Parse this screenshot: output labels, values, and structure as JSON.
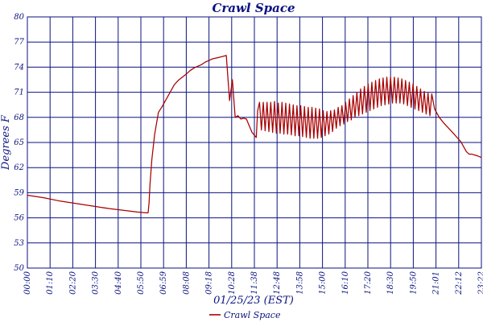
{
  "chart_data": {
    "type": "line",
    "title": "Crawl Space",
    "xlabel": "01/25/23 (EST)",
    "ylabel": "Degrees F",
    "ylim": [
      50,
      80
    ],
    "y_ticks": [
      "50",
      "53",
      "56",
      "59",
      "62",
      "65",
      "68",
      "71",
      "74",
      "77",
      "80"
    ],
    "x_ticks": [
      "00:00",
      "01:10",
      "02:20",
      "03:30",
      "04:40",
      "05:50",
      "06:59",
      "08:08",
      "09:18",
      "10:28",
      "11:38",
      "12:48",
      "13:58",
      "15:00",
      "16:10",
      "17:20",
      "18:30",
      "19:50",
      "21:01",
      "22:12",
      "23:22"
    ],
    "grid": true,
    "legend_position": "bottom-center",
    "series": [
      {
        "name": "Crawl Space",
        "color": "#a80000",
        "points": [
          [
            0,
            58.7
          ],
          [
            35,
            58.4
          ],
          [
            70,
            58.0
          ],
          [
            105,
            57.7
          ],
          [
            140,
            57.4
          ],
          [
            175,
            57.1
          ],
          [
            205,
            56.9
          ],
          [
            235,
            56.7
          ],
          [
            254,
            56.6
          ],
          [
            258,
            56.6
          ],
          [
            260,
            57.8
          ],
          [
            262,
            60.0
          ],
          [
            266,
            63.0
          ],
          [
            272,
            66.0
          ],
          [
            280,
            68.6
          ],
          [
            288,
            69.3
          ],
          [
            297,
            70.2
          ],
          [
            305,
            71.0
          ],
          [
            314,
            71.9
          ],
          [
            322,
            72.4
          ],
          [
            331,
            72.8
          ],
          [
            340,
            73.2
          ],
          [
            348,
            73.6
          ],
          [
            356,
            73.9
          ],
          [
            364,
            74.1
          ],
          [
            372,
            74.3
          ],
          [
            380,
            74.6
          ],
          [
            388,
            74.8
          ],
          [
            396,
            75.0
          ],
          [
            404,
            75.1
          ],
          [
            412,
            75.2
          ],
          [
            419,
            75.3
          ],
          [
            425,
            75.4
          ],
          [
            432,
            70.0
          ],
          [
            438,
            72.5
          ],
          [
            444,
            68.0
          ],
          [
            450,
            68.2
          ],
          [
            456,
            67.8
          ],
          [
            462,
            67.9
          ],
          [
            468,
            67.8
          ],
          [
            474,
            67.0
          ],
          [
            480,
            66.2
          ],
          [
            486,
            65.8
          ],
          [
            489,
            65.6
          ],
          [
            492,
            68.8
          ],
          [
            496,
            69.8
          ],
          [
            500,
            66.5
          ],
          [
            504,
            69.8
          ],
          [
            508,
            66.4
          ],
          [
            512,
            69.8
          ],
          [
            516,
            66.3
          ],
          [
            520,
            69.8
          ],
          [
            524,
            66.2
          ],
          [
            528,
            69.9
          ],
          [
            532,
            66.1
          ],
          [
            536,
            69.7
          ],
          [
            540,
            66.1
          ],
          [
            544,
            69.8
          ],
          [
            548,
            66.0
          ],
          [
            552,
            69.7
          ],
          [
            556,
            66.0
          ],
          [
            560,
            69.6
          ],
          [
            564,
            65.9
          ],
          [
            568,
            69.5
          ],
          [
            572,
            65.8
          ],
          [
            576,
            69.4
          ],
          [
            580,
            65.8
          ],
          [
            584,
            69.4
          ],
          [
            588,
            65.7
          ],
          [
            592,
            69.3
          ],
          [
            596,
            65.6
          ],
          [
            600,
            69.2
          ],
          [
            604,
            65.5
          ],
          [
            608,
            69.2
          ],
          [
            612,
            65.5
          ],
          [
            616,
            69.1
          ],
          [
            620,
            65.5
          ],
          [
            624,
            69.0
          ],
          [
            628,
            65.6
          ],
          [
            632,
            68.8
          ],
          [
            636,
            65.8
          ],
          [
            640,
            68.7
          ],
          [
            644,
            66.0
          ],
          [
            648,
            68.8
          ],
          [
            652,
            66.3
          ],
          [
            656,
            68.9
          ],
          [
            660,
            66.7
          ],
          [
            664,
            69.2
          ],
          [
            668,
            67.0
          ],
          [
            672,
            69.4
          ],
          [
            676,
            67.2
          ],
          [
            680,
            69.8
          ],
          [
            684,
            67.5
          ],
          [
            688,
            70.2
          ],
          [
            692,
            67.7
          ],
          [
            696,
            70.6
          ],
          [
            700,
            68.0
          ],
          [
            704,
            71.0
          ],
          [
            708,
            68.2
          ],
          [
            712,
            71.4
          ],
          [
            716,
            68.4
          ],
          [
            720,
            71.7
          ],
          [
            724,
            68.6
          ],
          [
            728,
            72.0
          ],
          [
            732,
            68.8
          ],
          [
            736,
            72.2
          ],
          [
            740,
            69.0
          ],
          [
            744,
            72.4
          ],
          [
            748,
            69.2
          ],
          [
            752,
            72.6
          ],
          [
            756,
            69.4
          ],
          [
            760,
            72.7
          ],
          [
            764,
            69.5
          ],
          [
            768,
            72.8
          ],
          [
            772,
            69.6
          ],
          [
            776,
            72.8
          ],
          [
            780,
            69.7
          ],
          [
            784,
            72.8
          ],
          [
            788,
            69.7
          ],
          [
            792,
            72.7
          ],
          [
            796,
            69.7
          ],
          [
            800,
            72.6
          ],
          [
            804,
            69.6
          ],
          [
            808,
            72.4
          ],
          [
            812,
            69.4
          ],
          [
            816,
            72.2
          ],
          [
            820,
            69.2
          ],
          [
            824,
            72.0
          ],
          [
            828,
            69.0
          ],
          [
            832,
            71.7
          ],
          [
            836,
            68.8
          ],
          [
            840,
            71.4
          ],
          [
            844,
            68.6
          ],
          [
            848,
            71.1
          ],
          [
            852,
            68.4
          ],
          [
            856,
            70.9
          ],
          [
            860,
            68.2
          ],
          [
            864,
            70.8
          ],
          [
            870,
            69.0
          ],
          [
            880,
            68.0
          ],
          [
            890,
            67.3
          ],
          [
            900,
            66.7
          ],
          [
            910,
            66.1
          ],
          [
            918,
            65.6
          ],
          [
            926,
            65.1
          ],
          [
            932,
            64.5
          ],
          [
            938,
            63.9
          ],
          [
            944,
            63.6
          ],
          [
            950,
            63.6
          ],
          [
            956,
            63.5
          ],
          [
            962,
            63.4
          ],
          [
            966,
            63.3
          ],
          [
            970,
            63.2
          ]
        ]
      }
    ]
  }
}
